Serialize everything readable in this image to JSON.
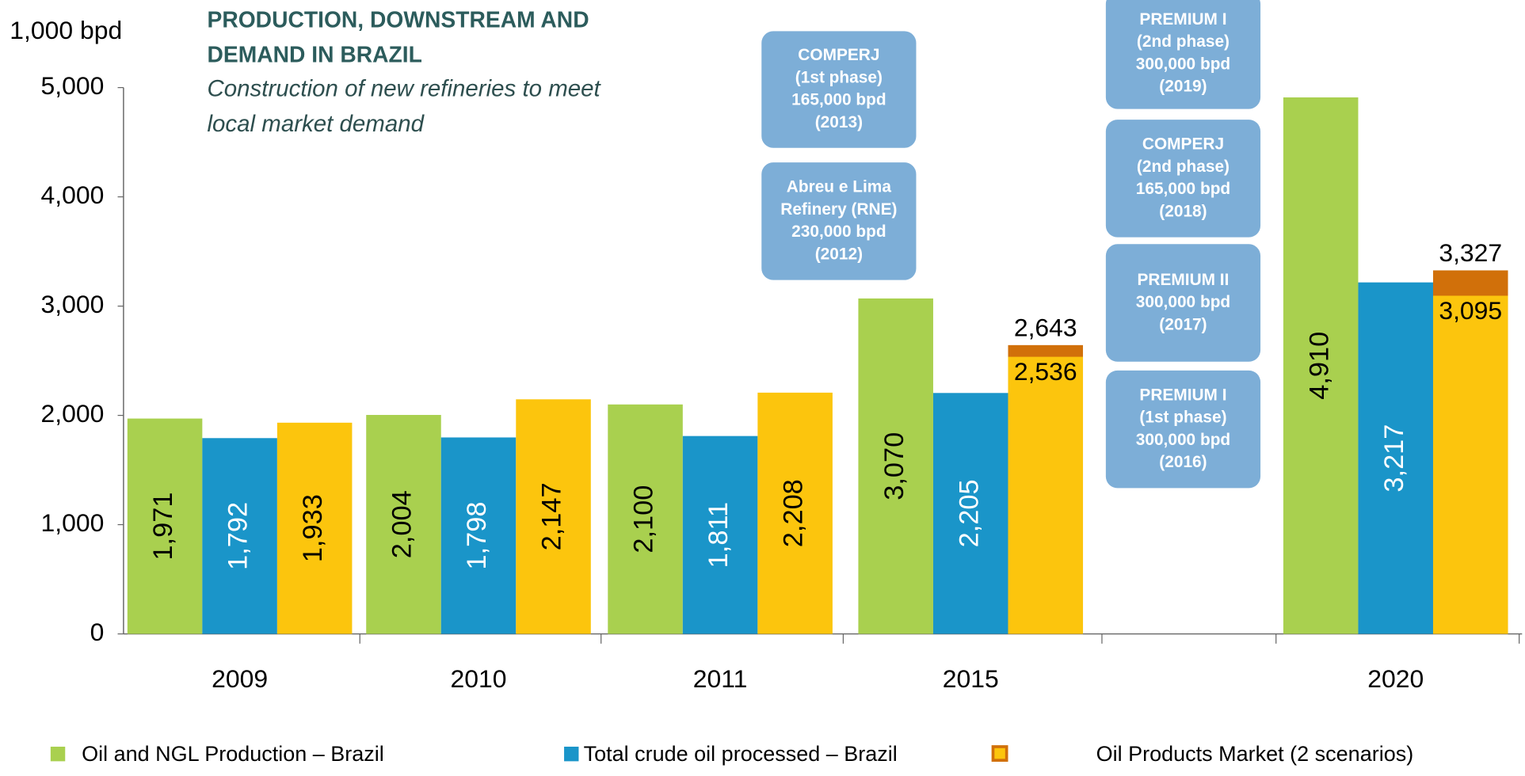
{
  "chart_data": {
    "type": "bar",
    "title": "PRODUCTION, DOWNSTREAM AND DEMAND IN BRAZIL",
    "subtitle": "Construction of new refineries to meet local market demand",
    "y_axis_label": "1,000 bpd",
    "categories": [
      "2009",
      "2010",
      "2011",
      "2015",
      null,
      "2020"
    ],
    "ylim": [
      0,
      5000
    ],
    "yticks": [
      0,
      {
        "value": 1000,
        "label": "1,000"
      },
      {
        "value": 2000,
        "label": "2,000"
      },
      {
        "value": 3000,
        "label": "3,000"
      },
      {
        "value": 4000,
        "label": "4,000"
      },
      {
        "value": 5000,
        "label": "5,000"
      }
    ],
    "series": [
      {
        "name": "Oil and NGL Production – Brazil",
        "color": "#a9d04f",
        "values": [
          1971,
          2004,
          2100,
          3070,
          null,
          4910
        ],
        "value_labels": [
          "1,971",
          "2,004",
          "2,100",
          "3,070",
          null,
          "4,910"
        ]
      },
      {
        "name": "Total crude oil processed – Brazil",
        "color": "#1a95c9",
        "values": [
          1792,
          1798,
          1811,
          2205,
          null,
          3217
        ],
        "value_labels": [
          "1,792",
          "1,798",
          "1,811",
          "2,205",
          null,
          "3,217"
        ]
      },
      {
        "name": "Oil Products Market (2 scenarios)",
        "color": "#fcc50d",
        "values": [
          1933,
          2147,
          2208,
          2536,
          null,
          3095
        ],
        "value_labels": [
          "1,933",
          "2,147",
          "2,208",
          "2,536",
          null,
          "3,095"
        ],
        "high_color": "#d1700a",
        "high_values": [
          null,
          null,
          null,
          2643,
          null,
          3327
        ],
        "high_value_labels": [
          null,
          null,
          null,
          "2,643",
          null,
          "3,327"
        ]
      }
    ],
    "annotations": [
      [
        "COMPERJ",
        "(1st phase)",
        "165,000 bpd",
        "(2013)"
      ],
      [
        "Abreu e Lima",
        "Refinery (RNE)",
        "230,000 bpd",
        "(2012)"
      ],
      [
        "PREMIUM I",
        "(2nd phase)",
        "300,000 bpd",
        "(2019)"
      ],
      [
        "COMPERJ",
        "(2nd phase)",
        "165,000 bpd",
        "(2018)"
      ],
      [
        "PREMIUM II",
        "300,000 bpd",
        "(2017)"
      ],
      [
        "PREMIUM I",
        "(1st phase)",
        "300,000 bpd",
        "(2016)"
      ]
    ]
  }
}
